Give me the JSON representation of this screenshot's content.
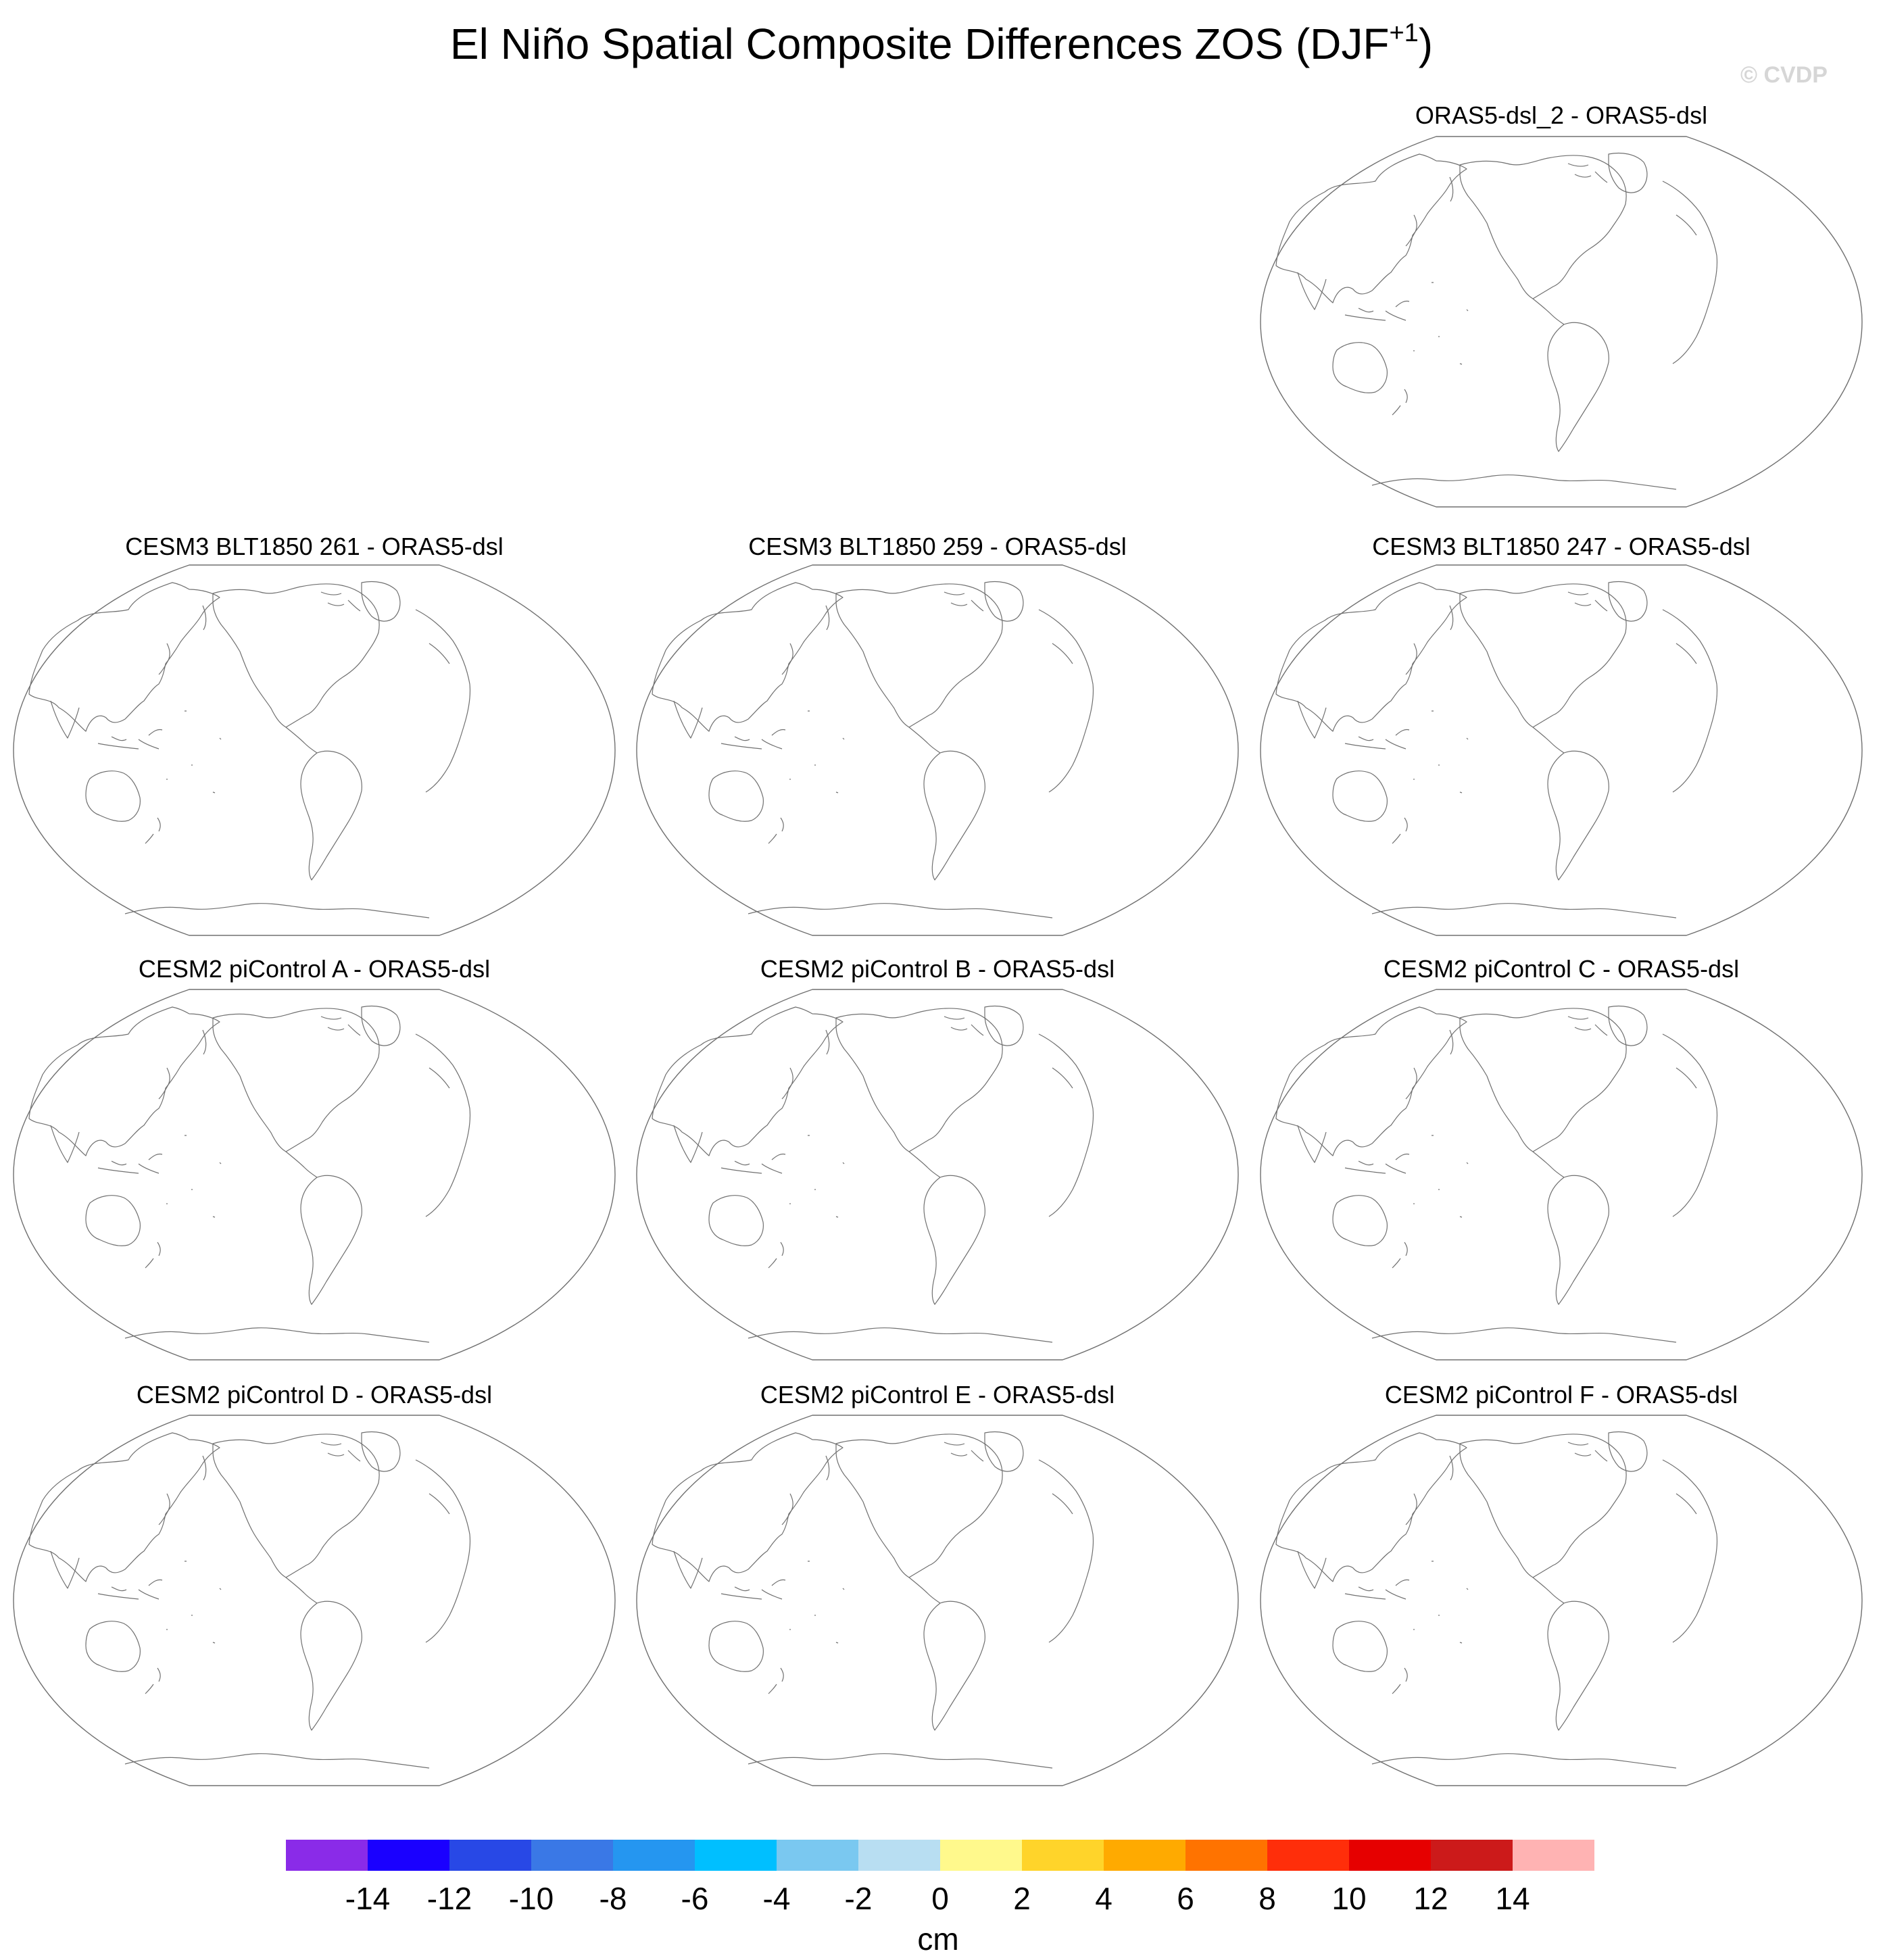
{
  "title": {
    "main": "El Niño Spatial Composite Differences ZOS (DJF",
    "superscript": "+1",
    "close": ")"
  },
  "watermark": "© CVDP",
  "panels": [
    {
      "label": "ORAS5-dsl_2 - ORAS5-dsl"
    },
    {
      "label": "CESM3 BLT1850 261 - ORAS5-dsl"
    },
    {
      "label": "CESM3 BLT1850 259 - ORAS5-dsl"
    },
    {
      "label": "CESM3 BLT1850 247 - ORAS5-dsl"
    },
    {
      "label": "CESM2 piControl A - ORAS5-dsl"
    },
    {
      "label": "CESM2 piControl B - ORAS5-dsl"
    },
    {
      "label": "CESM2 piControl C - ORAS5-dsl"
    },
    {
      "label": "CESM2 piControl D - ORAS5-dsl"
    },
    {
      "label": "CESM2 piControl E - ORAS5-dsl"
    },
    {
      "label": "CESM2 piControl F - ORAS5-dsl"
    }
  ],
  "colorbar": {
    "units": "cm",
    "tick_labels": [
      "-14",
      "-12",
      "-10",
      "-8",
      "-6",
      "-4",
      "-2",
      "0",
      "2",
      "4",
      "6",
      "8",
      "10",
      "12",
      "14"
    ],
    "colors": [
      "#8a2be8",
      "#1a00ff",
      "#2848e6",
      "#3a78e6",
      "#2596f0",
      "#00bfff",
      "#7ac8f0",
      "#b8def2",
      "#fff98c",
      "#ffd42a",
      "#ffaa00",
      "#ff7300",
      "#ff2e0a",
      "#e60000",
      "#cc1a1a",
      "#ffb3b3"
    ]
  }
}
